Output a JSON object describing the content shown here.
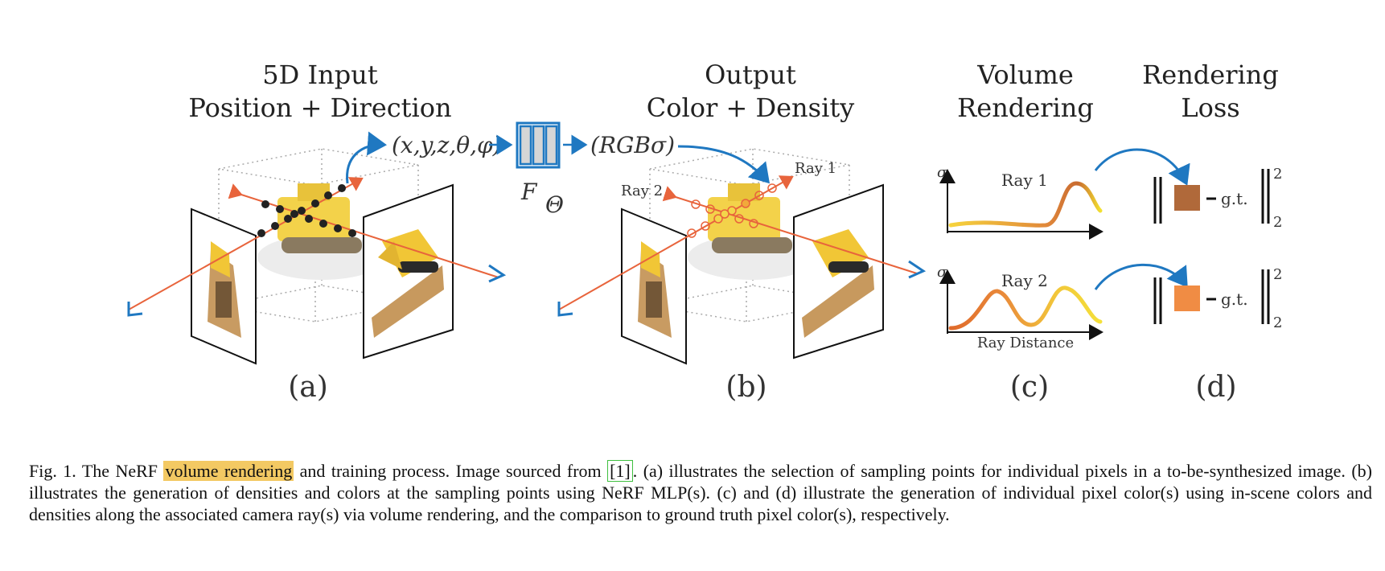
{
  "figure": {
    "panels": [
      {
        "label": "(a)",
        "header": [
          "5D Input",
          "Position + Direction"
        ]
      },
      {
        "label": "(b)",
        "header": [
          "Output",
          "Color + Density"
        ]
      },
      {
        "label": "(c)",
        "header": [
          "Volume",
          "Rendering"
        ]
      },
      {
        "label": "(d)",
        "header": [
          "Rendering",
          "Loss"
        ]
      }
    ],
    "input_tuple": "(x,y,z,θ,φ)",
    "output_tuple": "(RGBσ)",
    "network_label": "F",
    "network_sub": "Θ",
    "ray1_label": "Ray 1",
    "ray2_label": "Ray 2",
    "sigma": "σ",
    "plot_ray1_label": "Ray 1",
    "plot_ray2_label": "Ray 2",
    "x_axis_label": "Ray Distance",
    "loss_text": "g.t.",
    "loss_super": "2",
    "loss_sub": "2",
    "colors": {
      "ray": "#e8643c",
      "arrow": "#1f78c1",
      "swatch1": "#b0693a",
      "swatch2": "#f08c44",
      "network": "#d6d6d6"
    }
  },
  "caption": {
    "prefix": "Fig. 1.  The NeRF ",
    "highlight": "volume rendering",
    "mid": " and training process. Image sourced from ",
    "ref": "[1]",
    "rest": ". (a) illustrates the selection of sampling points for individual pixels in a to-be-synthesized image. (b) illustrates the generation of densities and colors at the sampling points using NeRF MLP(s). (c) and (d) illustrate the generation of individual pixel color(s) using in-scene colors and densities along the associated camera ray(s) via volume rendering, and the comparison to ground truth pixel color(s), respectively."
  }
}
